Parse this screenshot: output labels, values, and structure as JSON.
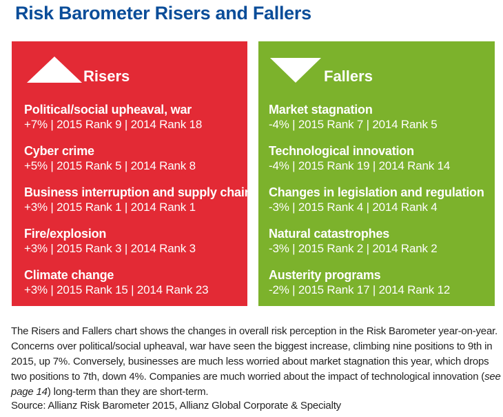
{
  "title": "Risk Barometer Risers and Fallers",
  "risers": {
    "heading": "Risers",
    "items": [
      {
        "name": "Political/social upheaval, war",
        "detail": "+7% | 2015 Rank 9 | 2014 Rank 18"
      },
      {
        "name": "Cyber crime",
        "detail": "+5% | 2015 Rank 5 | 2014 Rank 8"
      },
      {
        "name": "Business interruption and supply chain",
        "detail": "+3% | 2015 Rank 1 | 2014 Rank 1"
      },
      {
        "name": "Fire/explosion",
        "detail": "+3% | 2015 Rank 3 | 2014 Rank 3"
      },
      {
        "name": "Climate change",
        "detail": "+3% | 2015 Rank 15 | 2014 Rank 23"
      }
    ]
  },
  "fallers": {
    "heading": "Fallers",
    "items": [
      {
        "name": "Market stagnation",
        "detail": "-4% | 2015 Rank 7 | 2014 Rank 5"
      },
      {
        "name": "Technological innovation",
        "detail": "-4% | 2015 Rank 19 | 2014 Rank 14"
      },
      {
        "name": "Changes in legislation and regulation",
        "detail": "-3% | 2015 Rank 4 | 2014 Rank 4"
      },
      {
        "name": "Natural catastrophes",
        "detail": "-3% | 2015 Rank 2 | 2014 Rank 2"
      },
      {
        "name": "Austerity programs",
        "detail": "-2% | 2015 Rank 17 | 2014 Rank 12"
      }
    ]
  },
  "caption": {
    "text_before": "The Risers and Fallers chart shows the changes in overall risk perception in the Risk Barometer year-on-year. Concerns over political/social upheaval, war have seen the biggest increase, climbing nine positions to 9th in 2015, up 7%. Conversely, businesses are much less worried about market stagnation this year, which drops two positions to 7th, down 4%. Companies are much worried about the impact of technological innovation (",
    "text_italic": "see page 14",
    "text_after": ") long-term than they are short-term."
  },
  "source": "Source: Allianz Risk Barometer 2015, Allianz Global Corporate & Specialty",
  "colors": {
    "title": "#0a4d99",
    "risers_panel": "#e32a35",
    "fallers_panel": "#7cb22c"
  },
  "icons": {
    "risers": "triangle-up-icon",
    "fallers": "triangle-down-icon"
  }
}
